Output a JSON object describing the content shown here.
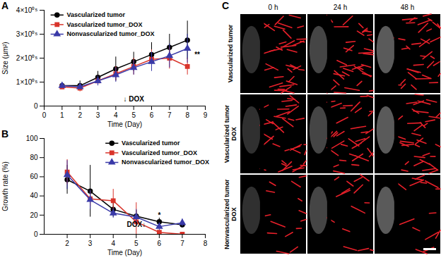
{
  "chart_data": [
    {
      "type": "line",
      "title": "A",
      "x_label": "Time (Day)",
      "y_label": "Size (µm²)",
      "x": [
        1,
        2,
        3,
        4,
        5,
        6,
        7,
        8
      ],
      "series": [
        {
          "name": "Vascularized tumor",
          "color": "#000000",
          "marker": "circle",
          "values": [
            85000,
            85000,
            120000,
            155000,
            185000,
            215000,
            245000,
            275000
          ],
          "errors": [
            10000,
            20000,
            25000,
            50000,
            40000,
            50000,
            55000,
            80000
          ]
        },
        {
          "name": "Vascularized tumor_DOX",
          "color": "#d9342b",
          "marker": "square",
          "values": [
            80000,
            75000,
            105000,
            135000,
            165000,
            195000,
            200000,
            165000
          ],
          "errors": [
            10000,
            15000,
            20000,
            30000,
            35000,
            40000,
            45000,
            35000
          ]
        },
        {
          "name": "Nonvascularized tumor_DOX",
          "color": "#3a3aa8",
          "marker": "triangle",
          "values": [
            85000,
            80000,
            105000,
            130000,
            160000,
            185000,
            210000,
            240000
          ],
          "errors": [
            10000,
            10000,
            20000,
            30000,
            30000,
            40000,
            50000,
            60000
          ]
        }
      ],
      "xlim": [
        0,
        9
      ],
      "xticks": [
        0,
        1,
        2,
        3,
        4,
        5,
        6,
        7,
        8,
        9
      ],
      "ylim": [
        0,
        400000
      ],
      "yticks": [
        0,
        {
          "value": 100000,
          "label": "1×10⁰⁵"
        },
        {
          "value": 200000,
          "label": "2×10⁰⁵"
        },
        {
          "value": 300000,
          "label": "3×10⁰⁵"
        },
        {
          "value": 400000,
          "label": "4×10⁰⁵"
        }
      ],
      "legend": "upper left",
      "annotations": [
        {
          "text": "↓ DOX",
          "x": 5,
          "y": 30000
        },
        {
          "text": "**",
          "x": 8.55,
          "y": 215000
        }
      ]
    },
    {
      "type": "line",
      "title": "B",
      "x_label": "Time (Day)",
      "y_label": "Growth rate (%)",
      "x": [
        2,
        3,
        4,
        5,
        6,
        7
      ],
      "series": [
        {
          "name": "Vascularized tumor",
          "color": "#000000",
          "marker": "circle",
          "values": [
            57,
            45,
            26,
            19,
            13,
            10
          ],
          "errors": [
            15,
            27,
            8,
            6,
            4,
            3
          ]
        },
        {
          "name": "Vascularized tumor_DOX",
          "color": "#d9342b",
          "marker": "square",
          "values": [
            65,
            37,
            35,
            13,
            2,
            0
          ],
          "errors": [
            13,
            8,
            12,
            20,
            2,
            1
          ]
        },
        {
          "name": "Nonvascularized tumor_DOX",
          "color": "#3a3aa8",
          "marker": "triangle",
          "values": [
            62,
            36,
            22,
            18,
            8,
            12
          ],
          "errors": [
            15,
            10,
            5,
            8,
            4,
            4
          ]
        }
      ],
      "xlim": [
        1,
        8
      ],
      "xticks": [
        2,
        3,
        4,
        5,
        6,
        7,
        8
      ],
      "ylim": [
        0,
        100
      ],
      "yticks": [
        0,
        20,
        40,
        60,
        80,
        100
      ],
      "legend": "upper right",
      "annotations": [
        {
          "text": "DOX↓",
          "x": 5,
          "y": 10
        },
        {
          "text": "*",
          "x": 6,
          "y": 20
        }
      ]
    }
  ],
  "panel_c": {
    "title": "C",
    "columns": [
      "0 h",
      "24 h",
      "48 h"
    ],
    "rows": [
      [
        "Vascularized tumor"
      ],
      [
        "Vascularized tumor",
        "DOX"
      ],
      [
        "Nonvascularized tumor",
        "DOX"
      ]
    ]
  }
}
